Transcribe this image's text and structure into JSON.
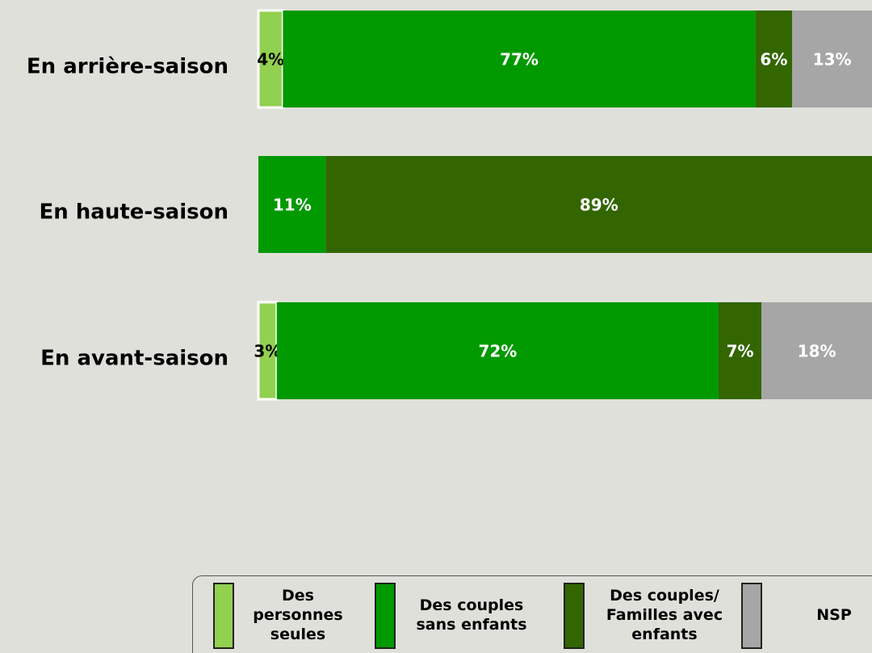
{
  "chart_data": {
    "type": "stacked-bar-horizontal",
    "categories": [
      "En arrière-saison",
      "En haute-saison",
      "En avant-saison"
    ],
    "xlim": [
      0,
      100
    ],
    "series": [
      {
        "name": "Des personnes seules",
        "color": "#92d050",
        "values": [
          4,
          null,
          3
        ],
        "value_labels": [
          "4%",
          null,
          "3%"
        ]
      },
      {
        "name": "Des couples sans enfants",
        "color": "#009900",
        "values": [
          77,
          11,
          72
        ],
        "value_labels": [
          "77%",
          "11%",
          "72%"
        ]
      },
      {
        "name": "Des couples/ Familles avec enfants",
        "color": "#336600",
        "values": [
          6,
          89,
          7
        ],
        "value_labels": [
          "6%",
          "89%",
          "7%"
        ]
      },
      {
        "name": "NSP",
        "color": "#a6a6a6",
        "values": [
          13,
          null,
          18
        ],
        "value_labels": [
          "13%",
          null,
          "18%"
        ]
      }
    ]
  }
}
